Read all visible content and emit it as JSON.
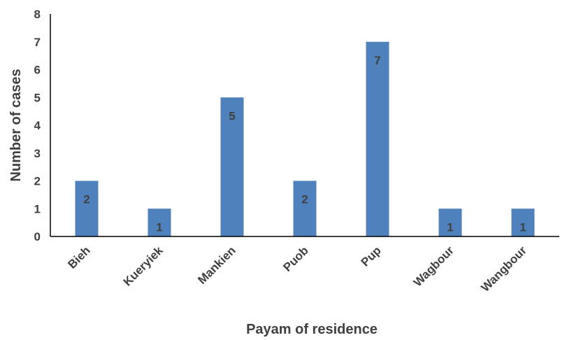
{
  "chart_data": {
    "type": "bar",
    "title": "",
    "xlabel": "Payam of residence",
    "ylabel": "Number of cases",
    "categories": [
      "Bieh",
      "Kueryiek",
      "Mankien",
      "Puob",
      "Pup",
      "Wagbour",
      "Wangbour"
    ],
    "values": [
      2,
      1,
      5,
      2,
      7,
      1,
      1
    ],
    "data_labels": [
      "2",
      "1",
      "5",
      "2",
      "7",
      "1",
      "1"
    ],
    "ylim": [
      0,
      8
    ],
    "yticks": [
      "0",
      "1",
      "2",
      "3",
      "4",
      "5",
      "6",
      "7",
      "8"
    ],
    "grid": false,
    "legend": "none",
    "bar_color": "#4f81bd",
    "text_color": "#404040",
    "axis_color": "#000000"
  }
}
